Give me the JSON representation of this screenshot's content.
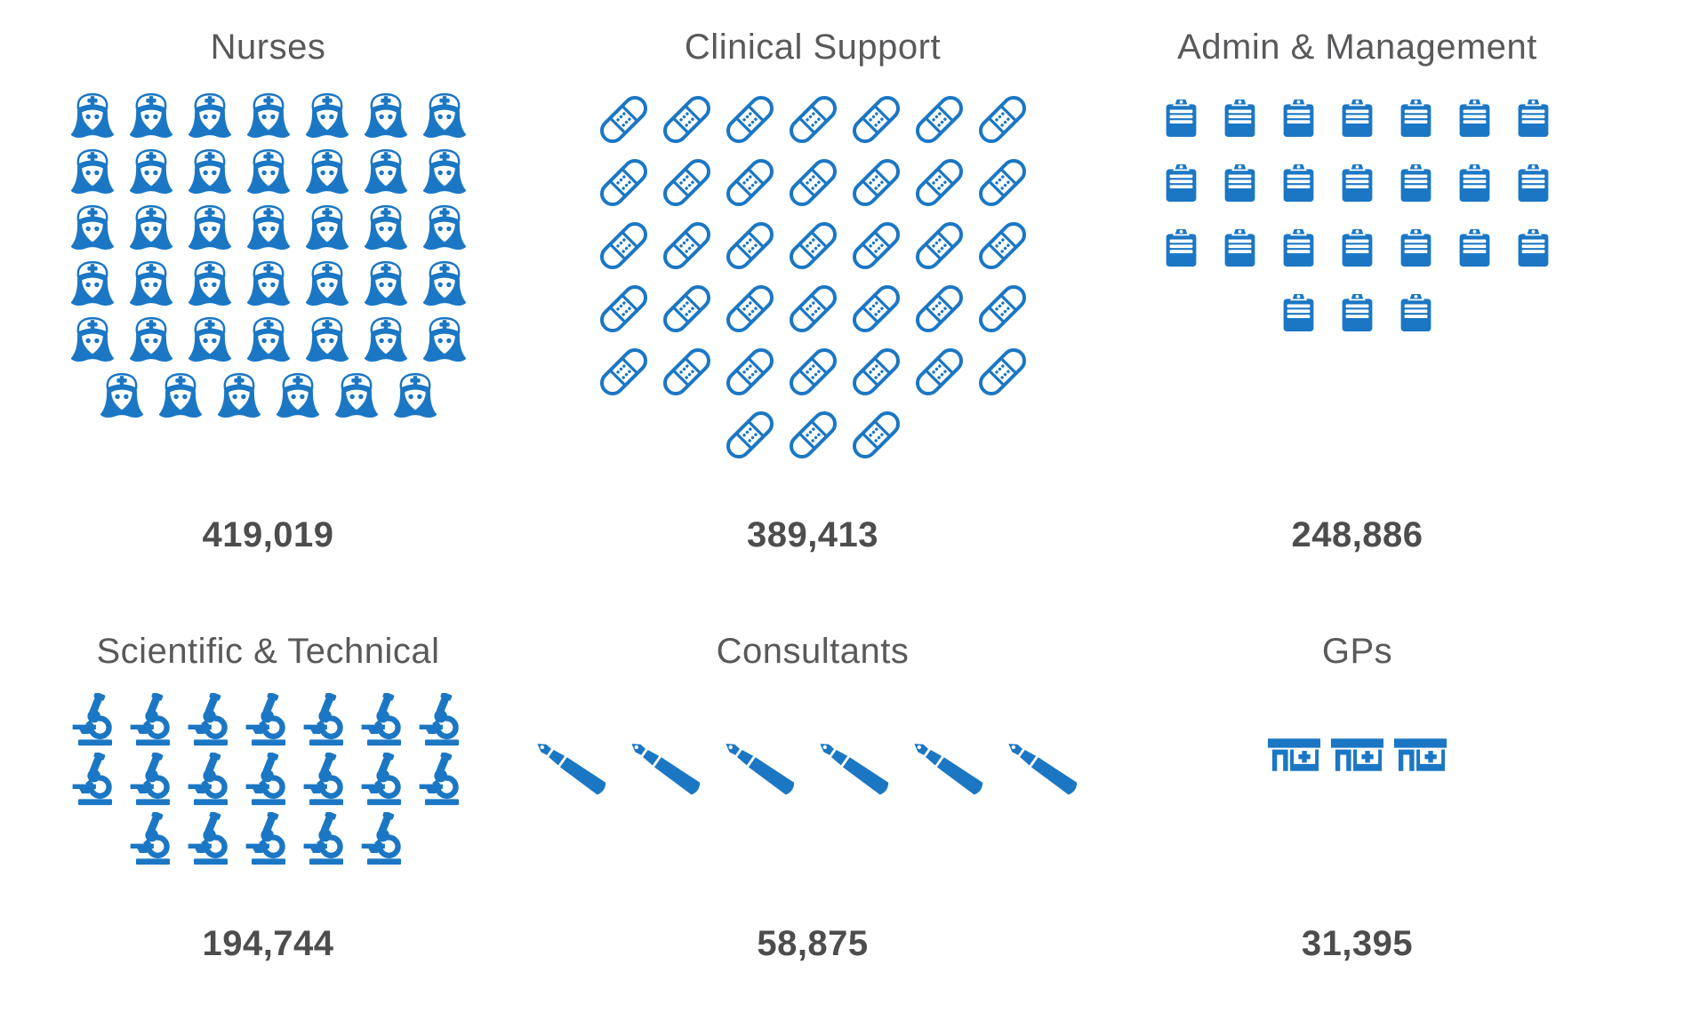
{
  "page": {
    "background": "#ffffff"
  },
  "style": {
    "icon_color": "#1b77c4",
    "title_color": "#58595b",
    "value_color": "#4d4d4d"
  },
  "chart_data": {
    "type": "bar",
    "variant": "pictogram",
    "title": "",
    "unit_per_icon": 10000,
    "grid": "off",
    "legend_position": "none",
    "categories": [
      "Nurses",
      "Clinical Support",
      "Admin & Management",
      "Scientific & Technical",
      "Consultants",
      "GPs"
    ],
    "values": [
      419019,
      389413,
      248886,
      194744,
      58875,
      31395
    ],
    "panels": [
      {
        "title": "Nurses",
        "value": 419019,
        "value_label": "419,019",
        "icon": "nurse",
        "icon_name": "nurse-icon",
        "icon_count": 41,
        "rows": [
          7,
          7,
          7,
          7,
          7,
          6
        ]
      },
      {
        "title": "Clinical Support",
        "value": 389413,
        "value_label": "389,413",
        "icon": "plaster",
        "icon_name": "plaster-icon",
        "icon_count": 38,
        "rows": [
          7,
          7,
          7,
          7,
          7,
          3
        ]
      },
      {
        "title": "Admin & Management",
        "value": 248886,
        "value_label": "248,886",
        "icon": "clipboard",
        "icon_name": "clipboard-icon",
        "icon_count": 24,
        "rows": [
          7,
          7,
          7,
          3
        ]
      },
      {
        "title": "Scientific & Technical",
        "value": 194744,
        "value_label": "194,744",
        "icon": "microscope",
        "icon_name": "microscope-icon",
        "icon_count": 19,
        "rows": [
          7,
          7,
          5
        ]
      },
      {
        "title": "Consultants",
        "value": 58875,
        "value_label": "58,875",
        "icon": "pen",
        "icon_name": "fountain-pen-icon",
        "icon_count": 6,
        "rows": [
          6
        ]
      },
      {
        "title": "GPs",
        "value": 31395,
        "value_label": "31,395",
        "icon": "clinic",
        "icon_name": "clinic-building-icon",
        "icon_count": 3,
        "rows": [
          3
        ]
      }
    ]
  }
}
